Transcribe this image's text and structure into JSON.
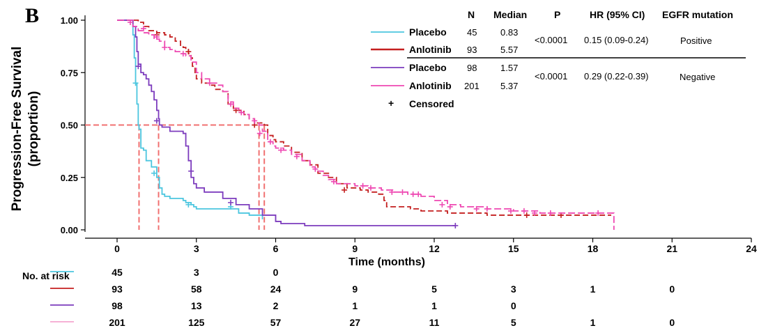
{
  "panel_label": "B",
  "chart_data": {
    "type": "line",
    "title": "",
    "xlabel": "Time (months)",
    "ylabel_line1": "Progression-Free Survival",
    "ylabel_line2": "(proportion)",
    "xlim": [
      0,
      24
    ],
    "ylim": [
      0,
      1
    ],
    "xticks": [
      0,
      3,
      6,
      9,
      12,
      15,
      18,
      21,
      24
    ],
    "yticks": [
      "0.00",
      "0.25",
      "0.50",
      "0.75",
      "1.00"
    ],
    "median_line_y": 0.5,
    "series": [
      {
        "name": "Placebo (EGFR positive)",
        "color": "#4cc6df",
        "dash": "solid",
        "points": [
          [
            0,
            1.0
          ],
          [
            0.55,
            1.0
          ],
          [
            0.6,
            0.93
          ],
          [
            0.65,
            0.82
          ],
          [
            0.7,
            0.7
          ],
          [
            0.75,
            0.6
          ],
          [
            0.8,
            0.5
          ],
          [
            0.83,
            0.48
          ],
          [
            0.9,
            0.39
          ],
          [
            1.0,
            0.38
          ],
          [
            1.1,
            0.33
          ],
          [
            1.3,
            0.3
          ],
          [
            1.5,
            0.25
          ],
          [
            1.6,
            0.2
          ],
          [
            1.7,
            0.17
          ],
          [
            1.8,
            0.16
          ],
          [
            2.0,
            0.15
          ],
          [
            2.5,
            0.14
          ],
          [
            2.6,
            0.13
          ],
          [
            2.8,
            0.12
          ],
          [
            2.9,
            0.11
          ],
          [
            3.0,
            0.1
          ],
          [
            4.5,
            0.1
          ],
          [
            4.6,
            0.08
          ],
          [
            5.0,
            0.07
          ],
          [
            5.5,
            0.05
          ]
        ],
        "censored": [
          [
            0.7,
            0.7
          ],
          [
            1.4,
            0.27
          ],
          [
            2.7,
            0.12
          ],
          [
            4.3,
            0.11
          ]
        ]
      },
      {
        "name": "Anlotinib (EGFR positive)",
        "color": "#c41f1f",
        "dash": "8,4",
        "points": [
          [
            0,
            1.0
          ],
          [
            0.5,
            1.0
          ],
          [
            0.8,
            0.99
          ],
          [
            1.0,
            0.97
          ],
          [
            1.2,
            0.95
          ],
          [
            1.5,
            0.94
          ],
          [
            1.8,
            0.93
          ],
          [
            2.0,
            0.92
          ],
          [
            2.2,
            0.9
          ],
          [
            2.4,
            0.88
          ],
          [
            2.5,
            0.87
          ],
          [
            2.6,
            0.86
          ],
          [
            2.7,
            0.84
          ],
          [
            2.8,
            0.82
          ],
          [
            2.85,
            0.78
          ],
          [
            2.95,
            0.75
          ],
          [
            3.0,
            0.72
          ],
          [
            3.2,
            0.7
          ],
          [
            3.5,
            0.69
          ],
          [
            3.7,
            0.67
          ],
          [
            4.0,
            0.66
          ],
          [
            4.2,
            0.6
          ],
          [
            4.4,
            0.58
          ],
          [
            4.6,
            0.57
          ],
          [
            4.8,
            0.55
          ],
          [
            5.0,
            0.53
          ],
          [
            5.2,
            0.51
          ],
          [
            5.57,
            0.5
          ],
          [
            5.7,
            0.45
          ],
          [
            5.9,
            0.43
          ],
          [
            6.0,
            0.42
          ],
          [
            6.3,
            0.4
          ],
          [
            6.6,
            0.37
          ],
          [
            7.0,
            0.33
          ],
          [
            7.3,
            0.31
          ],
          [
            7.6,
            0.27
          ],
          [
            8.0,
            0.25
          ],
          [
            8.3,
            0.22
          ],
          [
            8.7,
            0.2
          ],
          [
            9.2,
            0.19
          ],
          [
            9.5,
            0.18
          ],
          [
            9.9,
            0.17
          ],
          [
            10.1,
            0.14
          ],
          [
            10.2,
            0.11
          ],
          [
            11.1,
            0.1
          ],
          [
            11.5,
            0.09
          ],
          [
            12.5,
            0.08
          ],
          [
            14.0,
            0.07
          ],
          [
            15.0,
            0.07
          ],
          [
            18.5,
            0.07
          ],
          [
            18.7,
            0.07
          ]
        ],
        "censored": [
          [
            1.5,
            0.93
          ],
          [
            2.7,
            0.85
          ],
          [
            4.5,
            0.57
          ],
          [
            5.2,
            0.5
          ],
          [
            8.6,
            0.19
          ],
          [
            15.5,
            0.07
          ],
          [
            16.8,
            0.07
          ]
        ]
      },
      {
        "name": "Placebo (EGFR negative)",
        "color": "#7c3bbd",
        "dash": "solid",
        "points": [
          [
            0,
            1.0
          ],
          [
            0.5,
            1.0
          ],
          [
            0.6,
            0.97
          ],
          [
            0.7,
            0.92
          ],
          [
            0.75,
            0.85
          ],
          [
            0.8,
            0.79
          ],
          [
            0.9,
            0.75
          ],
          [
            1.0,
            0.74
          ],
          [
            1.1,
            0.72
          ],
          [
            1.2,
            0.69
          ],
          [
            1.3,
            0.66
          ],
          [
            1.4,
            0.62
          ],
          [
            1.5,
            0.57
          ],
          [
            1.57,
            0.53
          ],
          [
            1.6,
            0.5
          ],
          [
            1.7,
            0.49
          ],
          [
            2.0,
            0.47
          ],
          [
            2.5,
            0.46
          ],
          [
            2.6,
            0.4
          ],
          [
            2.7,
            0.33
          ],
          [
            2.8,
            0.25
          ],
          [
            2.9,
            0.22
          ],
          [
            3.0,
            0.2
          ],
          [
            3.3,
            0.18
          ],
          [
            3.5,
            0.18
          ],
          [
            4.0,
            0.15
          ],
          [
            4.5,
            0.12
          ],
          [
            5.0,
            0.1
          ],
          [
            5.5,
            0.07
          ],
          [
            6.0,
            0.04
          ],
          [
            6.2,
            0.03
          ],
          [
            7.0,
            0.03
          ],
          [
            7.1,
            0.02
          ],
          [
            12.0,
            0.02
          ],
          [
            12.8,
            0.02
          ]
        ],
        "censored": [
          [
            0.8,
            0.78
          ],
          [
            1.5,
            0.52
          ],
          [
            2.8,
            0.28
          ],
          [
            4.3,
            0.13
          ],
          [
            12.8,
            0.02
          ]
        ]
      },
      {
        "name": "Anlotinib (EGFR negative)",
        "color": "#ee48b2",
        "dash": "10,4",
        "points": [
          [
            0,
            1.0
          ],
          [
            0.3,
            1.0
          ],
          [
            0.6,
            0.97
          ],
          [
            0.8,
            0.95
          ],
          [
            1.0,
            0.94
          ],
          [
            1.2,
            0.93
          ],
          [
            1.4,
            0.91
          ],
          [
            1.6,
            0.9
          ],
          [
            1.8,
            0.87
          ],
          [
            2.0,
            0.86
          ],
          [
            2.2,
            0.85
          ],
          [
            2.4,
            0.84
          ],
          [
            2.6,
            0.83
          ],
          [
            2.8,
            0.8
          ],
          [
            3.0,
            0.75
          ],
          [
            3.2,
            0.72
          ],
          [
            3.5,
            0.7
          ],
          [
            3.8,
            0.69
          ],
          [
            4.0,
            0.66
          ],
          [
            4.2,
            0.61
          ],
          [
            4.4,
            0.58
          ],
          [
            4.6,
            0.56
          ],
          [
            4.8,
            0.55
          ],
          [
            5.0,
            0.53
          ],
          [
            5.2,
            0.51
          ],
          [
            5.37,
            0.5
          ],
          [
            5.5,
            0.47
          ],
          [
            5.7,
            0.42
          ],
          [
            5.9,
            0.4
          ],
          [
            6.0,
            0.39
          ],
          [
            6.3,
            0.38
          ],
          [
            6.6,
            0.36
          ],
          [
            7.0,
            0.33
          ],
          [
            7.3,
            0.3
          ],
          [
            7.5,
            0.28
          ],
          [
            7.8,
            0.26
          ],
          [
            8.0,
            0.24
          ],
          [
            8.3,
            0.22
          ],
          [
            8.6,
            0.22
          ],
          [
            9.0,
            0.21
          ],
          [
            9.5,
            0.2
          ],
          [
            10.0,
            0.19
          ],
          [
            10.5,
            0.18
          ],
          [
            11.0,
            0.17
          ],
          [
            11.5,
            0.16
          ],
          [
            12.0,
            0.14
          ],
          [
            12.5,
            0.12
          ],
          [
            13.0,
            0.11
          ],
          [
            14.0,
            0.1
          ],
          [
            15.0,
            0.09
          ],
          [
            16.0,
            0.08
          ],
          [
            18.5,
            0.08
          ],
          [
            18.8,
            0.08
          ],
          [
            18.8,
            0.0
          ]
        ],
        "censored": [
          [
            0.5,
            0.99
          ],
          [
            1.0,
            0.96
          ],
          [
            1.5,
            0.92
          ],
          [
            1.8,
            0.87
          ],
          [
            2.5,
            0.84
          ],
          [
            3.5,
            0.7
          ],
          [
            4.3,
            0.6
          ],
          [
            4.7,
            0.56
          ],
          [
            5.2,
            0.52
          ],
          [
            5.4,
            0.46
          ],
          [
            5.8,
            0.42
          ],
          [
            6.2,
            0.38
          ],
          [
            6.8,
            0.35
          ],
          [
            7.5,
            0.29
          ],
          [
            8.2,
            0.23
          ],
          [
            9.3,
            0.21
          ],
          [
            9.6,
            0.2
          ],
          [
            10.4,
            0.18
          ],
          [
            10.8,
            0.18
          ],
          [
            11.2,
            0.17
          ],
          [
            11.4,
            0.17
          ],
          [
            12.3,
            0.12
          ],
          [
            12.6,
            0.11
          ],
          [
            13.6,
            0.1
          ],
          [
            14.0,
            0.1
          ],
          [
            14.9,
            0.09
          ],
          [
            15.4,
            0.09
          ],
          [
            15.8,
            0.08
          ],
          [
            16.4,
            0.08
          ],
          [
            18.2,
            0.08
          ]
        ]
      }
    ],
    "median_drops": [
      0.83,
      1.57,
      5.37,
      5.57
    ],
    "table": {
      "headers": [
        "N",
        "Median",
        "P",
        "HR (95% CI)",
        "EGFR mutation"
      ],
      "groups": [
        {
          "rows": [
            {
              "label": "Placebo",
              "n": "45",
              "median": "0.83"
            },
            {
              "label": "Anlotinib",
              "n": "93",
              "median": "5.57"
            }
          ],
          "p": "<0.0001",
          "hr": "0.15 (0.09-0.24)",
          "egfr": "Positive"
        },
        {
          "rows": [
            {
              "label": "Placebo",
              "n": "98",
              "median": "1.57"
            },
            {
              "label": "Anlotinib",
              "n": "201",
              "median": "5.37"
            }
          ],
          "p": "<0.0001",
          "hr": "0.29 (0.22-0.39)",
          "egfr": "Negative"
        }
      ],
      "censored_symbol": "+",
      "censored_label": "Censored"
    },
    "risk_table": {
      "title": "No. at risk",
      "rows": [
        {
          "color": "#4cc6df",
          "values": [
            "45",
            "3",
            "0"
          ]
        },
        {
          "color": "#c41f1f",
          "values": [
            "93",
            "58",
            "24",
            "9",
            "5",
            "3",
            "1",
            "0"
          ]
        },
        {
          "color": "#7c3bbd",
          "values": [
            "98",
            "13",
            "2",
            "1",
            "1",
            "0"
          ]
        },
        {
          "color": "#f4a6cf",
          "values": [
            "201",
            "125",
            "57",
            "27",
            "11",
            "5",
            "1",
            "0"
          ]
        }
      ]
    }
  }
}
